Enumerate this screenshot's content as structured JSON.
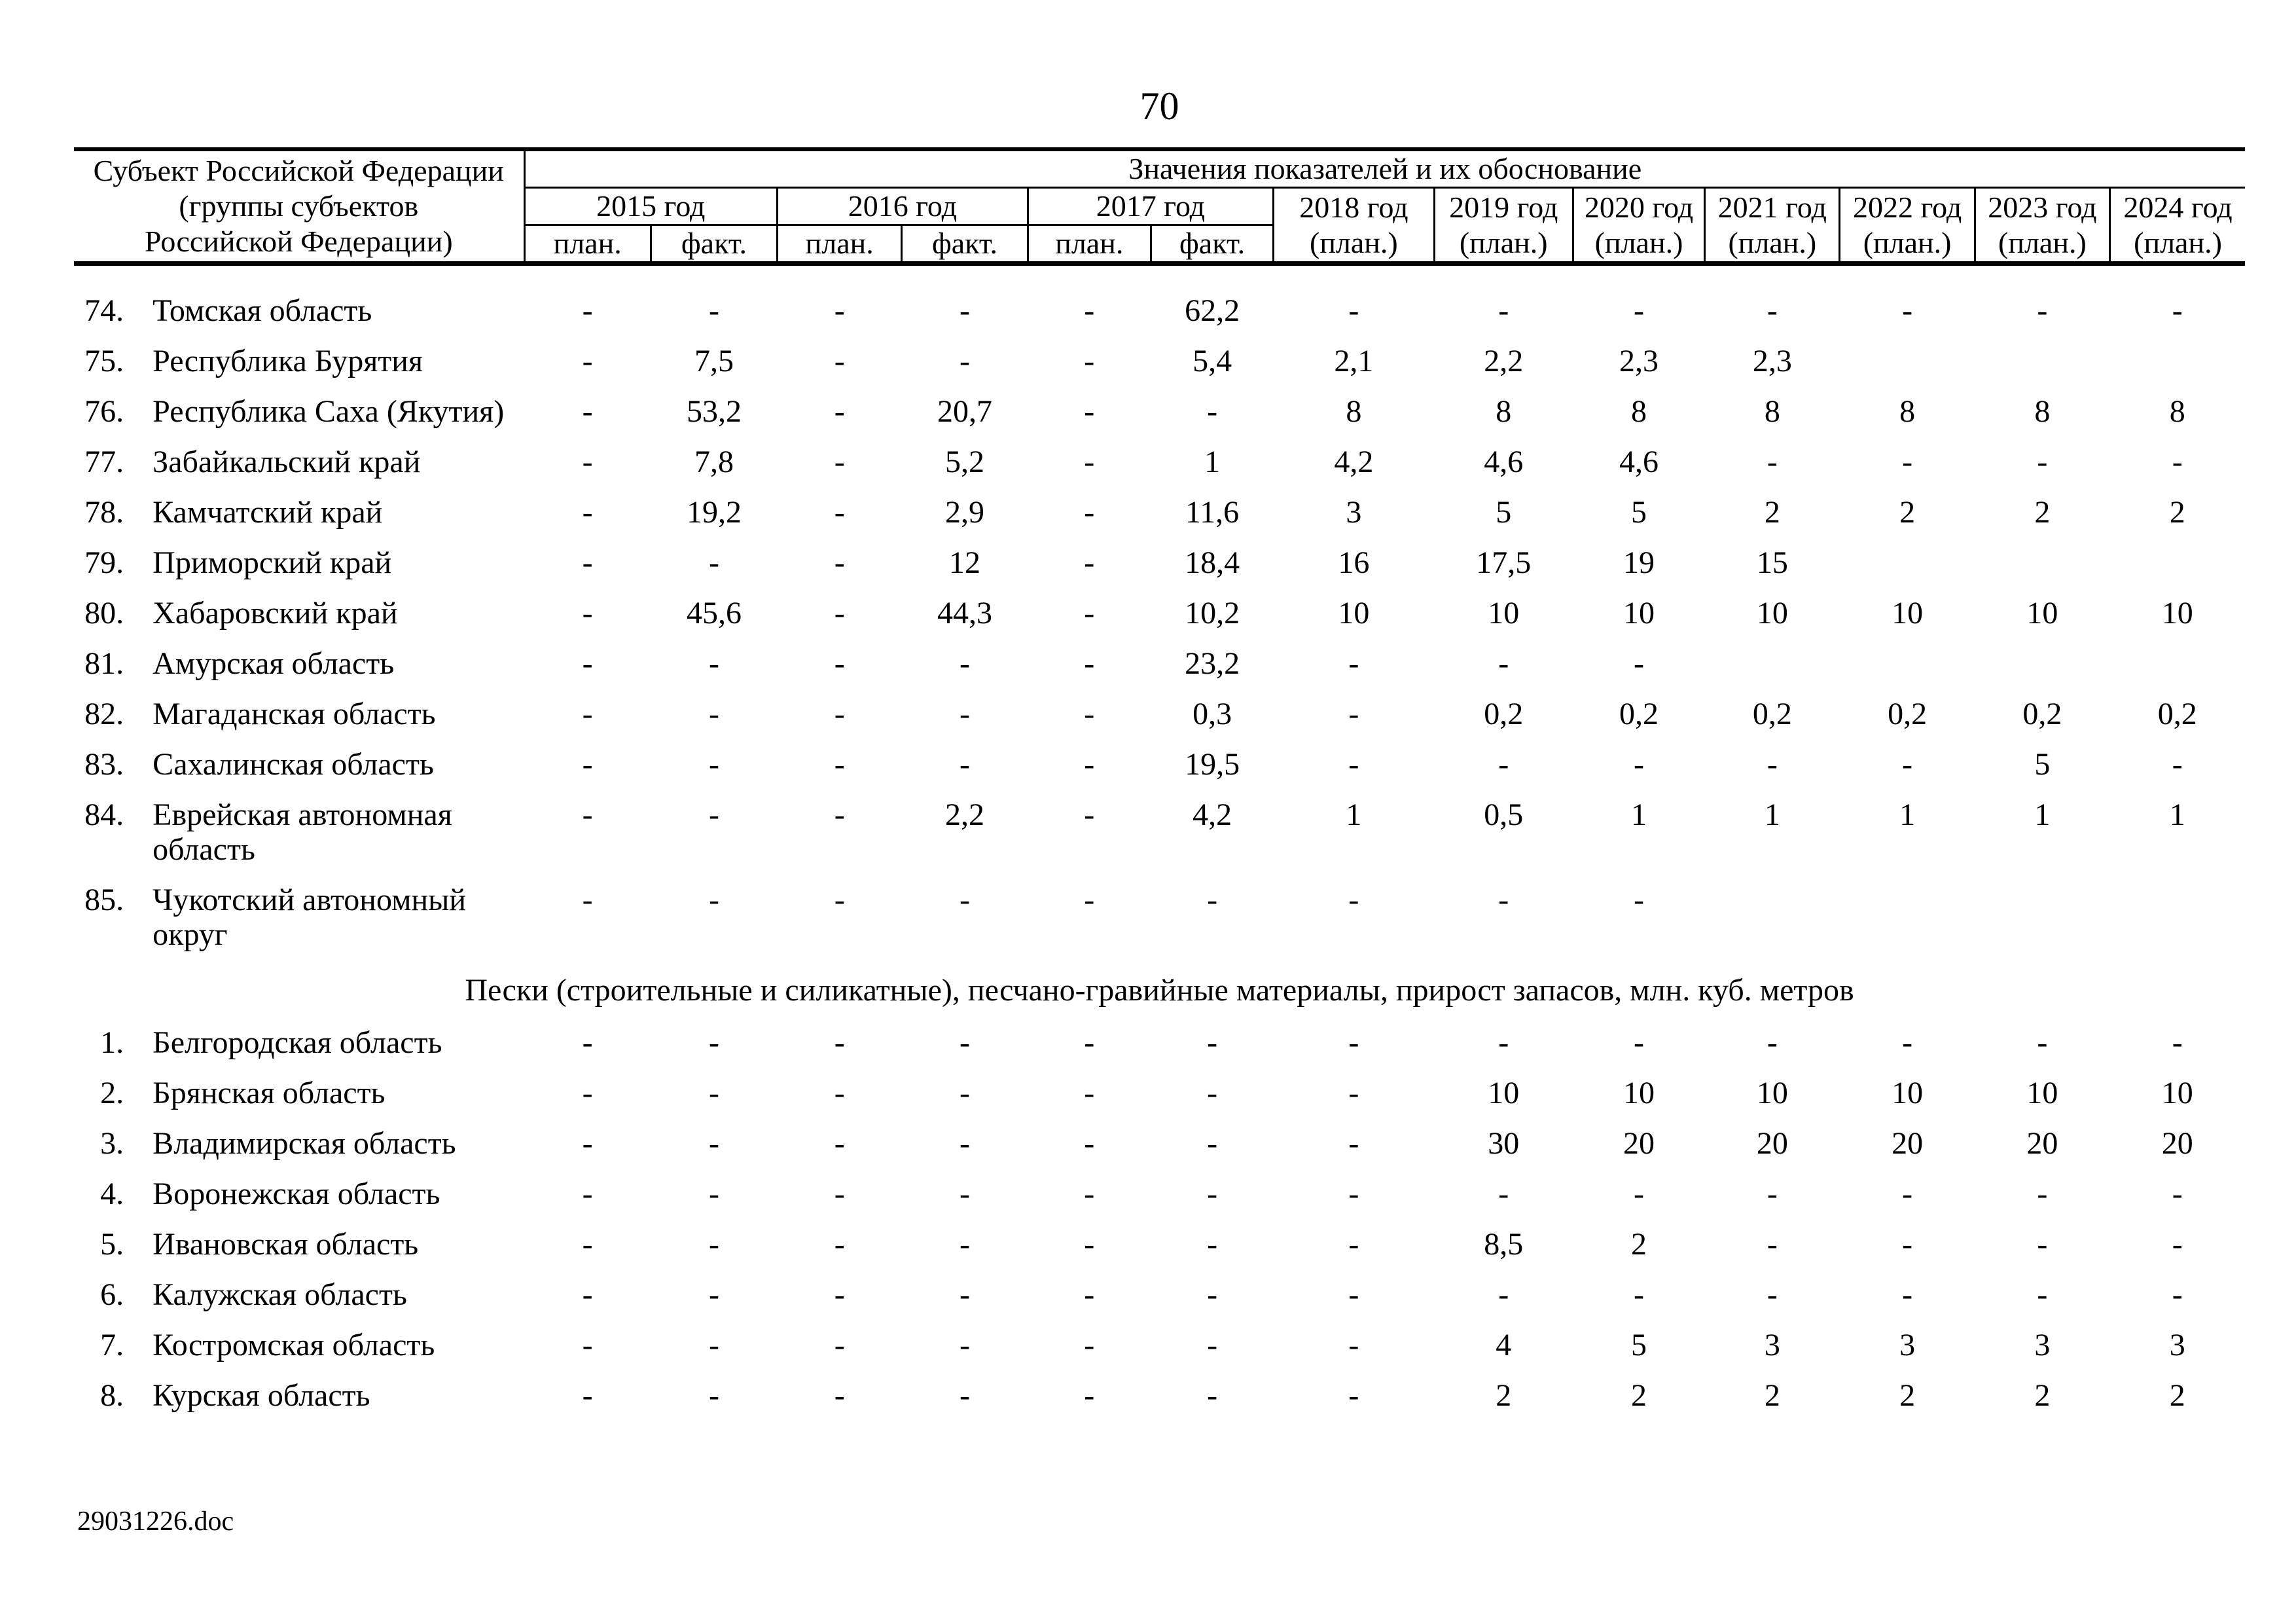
{
  "page": {
    "number": "70",
    "footer": "29031226.doc"
  },
  "table": {
    "header": {
      "subject_lines": [
        "Субъект Российской Федерации",
        "(группы субъектов",
        "Российской Федерации)"
      ],
      "values_title": "Значения показателей и их обоснование",
      "year_groups": [
        {
          "label": "2015 год",
          "plan": "план.",
          "fact": "факт."
        },
        {
          "label": "2016 год",
          "plan": "план.",
          "fact": "факт."
        },
        {
          "label": "2017 год",
          "plan": "план.",
          "fact": "факт."
        }
      ],
      "single_years": [
        {
          "label": "2018 год",
          "plan": "(план.)"
        },
        {
          "label": "2019 год",
          "plan": "(план.)"
        },
        {
          "label": "2020 год",
          "plan": "(план.)"
        },
        {
          "label": "2021 год",
          "plan": "(план.)"
        },
        {
          "label": "2022 год",
          "plan": "(план.)"
        },
        {
          "label": "2023 год",
          "plan": "(план.)"
        },
        {
          "label": "2024 год",
          "plan": "(план.)"
        }
      ]
    },
    "sections": [
      {
        "heading": "",
        "rows": [
          {
            "num": "74.",
            "name": "Томская область",
            "values": [
              "-",
              "-",
              "-",
              "-",
              "-",
              "62,2",
              "-",
              "-",
              "-",
              "-",
              "-",
              "-",
              "-"
            ]
          },
          {
            "num": "75.",
            "name": "Республика Бурятия",
            "values": [
              "-",
              "7,5",
              "-",
              "-",
              "-",
              "5,4",
              "2,1",
              "2,2",
              "2,3",
              "2,3",
              "",
              "",
              ""
            ]
          },
          {
            "num": "76.",
            "name": "Республика Саха (Якутия)",
            "values": [
              "-",
              "53,2",
              "-",
              "20,7",
              "-",
              "-",
              "8",
              "8",
              "8",
              "8",
              "8",
              "8",
              "8"
            ]
          },
          {
            "num": "77.",
            "name": "Забайкальский край",
            "values": [
              "-",
              "7,8",
              "-",
              "5,2",
              "-",
              "1",
              "4,2",
              "4,6",
              "4,6",
              "-",
              "-",
              "-",
              "-"
            ]
          },
          {
            "num": "78.",
            "name": "Камчатский край",
            "values": [
              "-",
              "19,2",
              "-",
              "2,9",
              "-",
              "11,6",
              "3",
              "5",
              "5",
              "2",
              "2",
              "2",
              "2"
            ]
          },
          {
            "num": "79.",
            "name": "Приморский край",
            "values": [
              "-",
              "-",
              "-",
              "12",
              "-",
              "18,4",
              "16",
              "17,5",
              "19",
              "15",
              "",
              "",
              ""
            ]
          },
          {
            "num": "80.",
            "name": "Хабаровский край",
            "values": [
              "-",
              "45,6",
              "-",
              "44,3",
              "-",
              "10,2",
              "10",
              "10",
              "10",
              "10",
              "10",
              "10",
              "10"
            ]
          },
          {
            "num": "81.",
            "name": "Амурская область",
            "values": [
              "-",
              "-",
              "-",
              "-",
              "-",
              "23,2",
              "-",
              "-",
              "-",
              "",
              "",
              "",
              ""
            ]
          },
          {
            "num": "82.",
            "name": "Магаданская область",
            "values": [
              "-",
              "-",
              "-",
              "-",
              "-",
              "0,3",
              "-",
              "0,2",
              "0,2",
              "0,2",
              "0,2",
              "0,2",
              "0,2"
            ]
          },
          {
            "num": "83.",
            "name": "Сахалинская область",
            "values": [
              "-",
              "-",
              "-",
              "-",
              "-",
              "19,5",
              "-",
              "-",
              "-",
              "-",
              "-",
              "5",
              "-"
            ]
          },
          {
            "num": "84.",
            "name": "Еврейская автономная область",
            "values": [
              "-",
              "-",
              "-",
              "2,2",
              "-",
              "4,2",
              "1",
              "0,5",
              "1",
              "1",
              "1",
              "1",
              "1"
            ]
          },
          {
            "num": "85.",
            "name": "Чукотский автономный округ",
            "values": [
              "-",
              "-",
              "-",
              "-",
              "-",
              "-",
              "-",
              "-",
              "-",
              "",
              "",
              "",
              ""
            ]
          }
        ]
      },
      {
        "heading": "Пески (строительные и силикатные), песчано-гравийные материалы, прирост запасов, млн. куб. метров",
        "rows": [
          {
            "num": "1.",
            "name": "Белгородская область",
            "values": [
              "-",
              "-",
              "-",
              "-",
              "-",
              "-",
              "-",
              "-",
              "-",
              "-",
              "-",
              "-",
              "-"
            ]
          },
          {
            "num": "2.",
            "name": "Брянская область",
            "values": [
              "-",
              "-",
              "-",
              "-",
              "-",
              "-",
              "-",
              "10",
              "10",
              "10",
              "10",
              "10",
              "10"
            ]
          },
          {
            "num": "3.",
            "name": "Владимирская область",
            "values": [
              "-",
              "-",
              "-",
              "-",
              "-",
              "-",
              "-",
              "30",
              "20",
              "20",
              "20",
              "20",
              "20"
            ]
          },
          {
            "num": "4.",
            "name": "Воронежская область",
            "values": [
              "-",
              "-",
              "-",
              "-",
              "-",
              "-",
              "-",
              "-",
              "-",
              "-",
              "-",
              "-",
              "-"
            ]
          },
          {
            "num": "5.",
            "name": "Ивановская область",
            "values": [
              "-",
              "-",
              "-",
              "-",
              "-",
              "-",
              "-",
              "8,5",
              "2",
              "-",
              "-",
              "-",
              "-"
            ]
          },
          {
            "num": "6.",
            "name": "Калужская область",
            "values": [
              "-",
              "-",
              "-",
              "-",
              "-",
              "-",
              "-",
              "-",
              "-",
              "-",
              "-",
              "-",
              "-"
            ]
          },
          {
            "num": "7.",
            "name": "Костромская область",
            "values": [
              "-",
              "-",
              "-",
              "-",
              "-",
              "-",
              "-",
              "4",
              "5",
              "3",
              "3",
              "3",
              "3"
            ]
          },
          {
            "num": "8.",
            "name": "Курская область",
            "values": [
              "-",
              "-",
              "-",
              "-",
              "-",
              "-",
              "-",
              "2",
              "2",
              "2",
              "2",
              "2",
              "2"
            ]
          }
        ]
      }
    ]
  }
}
